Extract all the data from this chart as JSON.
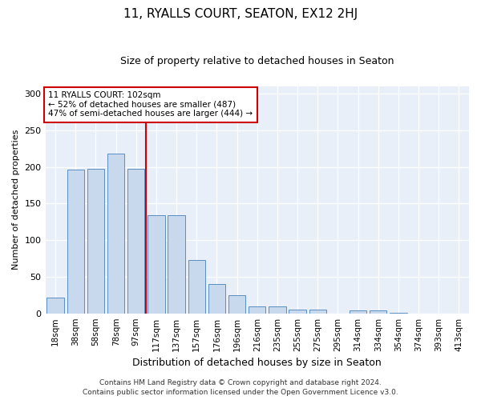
{
  "title": "11, RYALLS COURT, SEATON, EX12 2HJ",
  "subtitle": "Size of property relative to detached houses in Seaton",
  "xlabel": "Distribution of detached houses by size in Seaton",
  "ylabel": "Number of detached properties",
  "bar_labels": [
    "18sqm",
    "38sqm",
    "58sqm",
    "78sqm",
    "97sqm",
    "117sqm",
    "137sqm",
    "157sqm",
    "176sqm",
    "196sqm",
    "216sqm",
    "235sqm",
    "255sqm",
    "275sqm",
    "295sqm",
    "314sqm",
    "334sqm",
    "354sqm",
    "374sqm",
    "393sqm",
    "413sqm"
  ],
  "bar_heights": [
    22,
    196,
    197,
    218,
    197,
    134,
    134,
    73,
    40,
    25,
    10,
    9,
    5,
    5,
    0,
    4,
    4,
    1,
    0,
    0,
    0
  ],
  "bar_color": "#c9d9ed",
  "bar_edge_color": "#5a8fc2",
  "vline_x_index": 4,
  "vline_color": "#cc0000",
  "annotation_text": "11 RYALLS COURT: 102sqm\n← 52% of detached houses are smaller (487)\n47% of semi-detached houses are larger (444) →",
  "annotation_box_color": "#ffffff",
  "annotation_box_edge": "#cc0000",
  "ylim": [
    0,
    310
  ],
  "yticks": [
    0,
    50,
    100,
    150,
    200,
    250,
    300
  ],
  "bg_color": "#e8eff8",
  "footer1": "Contains HM Land Registry data © Crown copyright and database right 2024.",
  "footer2": "Contains public sector information licensed under the Open Government Licence v3.0."
}
